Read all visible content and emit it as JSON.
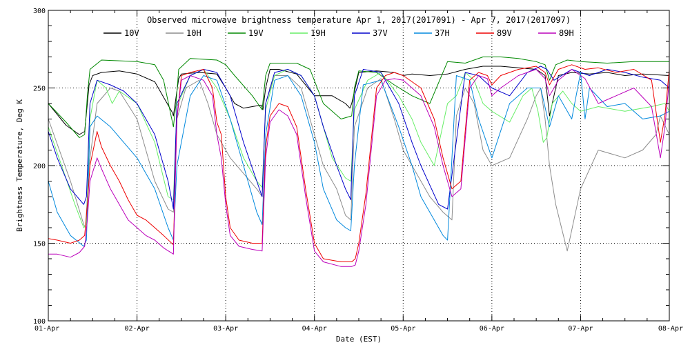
{
  "chart_data": {
    "type": "line",
    "title": "Observed microwave brightness temperature Apr  1, 2017(2017091) - Apr  7, 2017(2017097)",
    "xlabel": "Date (EST)",
    "ylabel": "Brightness Temperature, Deg K",
    "xlim": [
      0,
      7
    ],
    "ylim": [
      100,
      300
    ],
    "grid": true,
    "legend_position": "top",
    "xticks": [
      {
        "value": 0,
        "label": "01-Apr"
      },
      {
        "value": 1,
        "label": "02-Apr"
      },
      {
        "value": 2,
        "label": "03-Apr"
      },
      {
        "value": 3,
        "label": "04-Apr"
      },
      {
        "value": 4,
        "label": "05-Apr"
      },
      {
        "value": 5,
        "label": "06-Apr"
      },
      {
        "value": 6,
        "label": "07-Apr"
      },
      {
        "value": 7,
        "label": "08-Apr"
      }
    ],
    "yticks": [
      {
        "value": 100,
        "label": "100"
      },
      {
        "value": 150,
        "label": "150"
      },
      {
        "value": 200,
        "label": "200"
      },
      {
        "value": 250,
        "label": "250"
      },
      {
        "value": 300,
        "label": "300"
      }
    ],
    "series": [
      {
        "name": "10V",
        "color": "#000000",
        "x": [
          0,
          0.2,
          0.35,
          0.41,
          0.44,
          0.46,
          0.5,
          0.6,
          0.8,
          1.0,
          1.2,
          1.4,
          1.41,
          1.44,
          1.47,
          1.5,
          1.7,
          1.9,
          2.0,
          2.1,
          2.2,
          2.3,
          2.4,
          2.42,
          2.45,
          2.5,
          2.6,
          2.8,
          3.0,
          3.2,
          3.35,
          3.4,
          3.42,
          3.5,
          3.7,
          3.9,
          4.0,
          4.1,
          4.3,
          4.5,
          4.7,
          4.9,
          5.1,
          5.3,
          5.5,
          5.6,
          5.65,
          5.75,
          5.9,
          6.1,
          6.3,
          6.5,
          6.7,
          7.0
        ],
        "y": [
          240,
          226,
          220,
          222,
          240,
          252,
          258,
          260,
          261,
          259,
          254,
          234,
          232,
          244,
          256,
          259,
          260,
          259,
          250,
          240,
          237,
          238,
          239,
          236,
          250,
          262,
          262,
          259,
          245,
          245,
          240,
          237,
          240,
          260,
          261,
          260,
          258,
          259,
          258,
          259,
          262,
          264,
          264,
          263,
          262,
          258,
          232,
          258,
          260,
          259,
          260,
          258,
          259,
          258
        ]
      },
      {
        "name": "10H",
        "color": "#8c8c8c",
        "x": [
          0,
          0.25,
          0.4,
          0.42,
          0.46,
          0.55,
          0.7,
          0.8,
          1.0,
          1.2,
          1.35,
          1.41,
          1.45,
          1.55,
          1.7,
          1.8,
          1.9,
          2.05,
          2.2,
          2.35,
          2.41,
          2.45,
          2.55,
          2.7,
          2.85,
          3.0,
          3.1,
          3.25,
          3.35,
          3.41,
          3.45,
          3.6,
          3.75,
          3.9,
          4.0,
          4.15,
          4.3,
          4.45,
          4.55,
          4.6,
          4.7,
          4.8,
          4.9,
          5.0,
          5.2,
          5.4,
          5.5,
          5.55,
          5.6,
          5.65,
          5.72,
          5.85,
          6.0,
          6.2,
          6.5,
          6.7,
          6.85,
          6.9,
          7.0
        ],
        "y": [
          230,
          190,
          162,
          160,
          200,
          240,
          250,
          248,
          230,
          190,
          172,
          170,
          230,
          250,
          255,
          240,
          220,
          205,
          195,
          185,
          180,
          240,
          258,
          258,
          250,
          220,
          200,
          185,
          168,
          165,
          225,
          250,
          256,
          230,
          210,
          195,
          180,
          170,
          165,
          232,
          250,
          240,
          210,
          200,
          205,
          230,
          245,
          250,
          230,
          200,
          175,
          145,
          185,
          210,
          205,
          210,
          220,
          232,
          220
        ]
      },
      {
        "name": "19V",
        "color": "#008800",
        "x": [
          0,
          0.2,
          0.35,
          0.41,
          0.44,
          0.47,
          0.6,
          1.0,
          1.2,
          1.3,
          1.41,
          1.44,
          1.47,
          1.6,
          1.9,
          2.0,
          2.1,
          2.3,
          2.41,
          2.45,
          2.5,
          2.8,
          2.95,
          3.1,
          3.3,
          3.42,
          3.45,
          3.5,
          3.7,
          3.9,
          4.1,
          4.3,
          4.5,
          4.7,
          4.9,
          5.1,
          5.3,
          5.5,
          5.6,
          5.65,
          5.72,
          5.85,
          6.0,
          6.3,
          6.6,
          7.0
        ],
        "y": [
          240,
          228,
          218,
          220,
          245,
          262,
          268,
          267,
          265,
          255,
          225,
          240,
          262,
          269,
          268,
          265,
          258,
          245,
          236,
          258,
          266,
          266,
          262,
          240,
          230,
          232,
          250,
          261,
          260,
          252,
          245,
          240,
          267,
          266,
          270,
          270,
          269,
          267,
          265,
          255,
          265,
          268,
          267,
          266,
          267,
          267
        ]
      },
      {
        "name": "19H",
        "color": "#66ee66",
        "x": [
          0,
          0.15,
          0.3,
          0.4,
          0.43,
          0.47,
          0.55,
          0.65,
          0.72,
          0.8,
          1.0,
          1.2,
          1.35,
          1.41,
          1.45,
          1.6,
          1.75,
          1.9,
          2.05,
          2.2,
          2.35,
          2.41,
          2.45,
          2.55,
          2.7,
          2.85,
          3.0,
          3.1,
          3.2,
          3.35,
          3.41,
          3.45,
          3.6,
          3.75,
          3.95,
          4.1,
          4.2,
          4.35,
          4.5,
          4.6,
          4.7,
          4.8,
          4.9,
          5.0,
          5.2,
          5.35,
          5.45,
          5.52,
          5.58,
          5.62,
          5.68,
          5.8,
          5.9,
          6.0,
          6.2,
          6.5,
          6.8,
          6.95,
          7.0
        ],
        "y": [
          225,
          200,
          175,
          160,
          162,
          230,
          255,
          250,
          240,
          248,
          240,
          215,
          180,
          178,
          238,
          258,
          262,
          250,
          230,
          205,
          190,
          186,
          236,
          258,
          262,
          258,
          245,
          225,
          205,
          192,
          190,
          236,
          255,
          260,
          245,
          230,
          215,
          200,
          240,
          245,
          260,
          255,
          240,
          235,
          228,
          245,
          250,
          235,
          215,
          218,
          240,
          248,
          240,
          235,
          238,
          235,
          238,
          240,
          235
        ]
      },
      {
        "name": "37V",
        "color": "#0000cc",
        "x": [
          0,
          0.1,
          0.25,
          0.4,
          0.43,
          0.47,
          0.55,
          0.7,
          0.85,
          1.0,
          1.2,
          1.35,
          1.41,
          1.45,
          1.6,
          1.75,
          1.9,
          2.05,
          2.2,
          2.35,
          2.41,
          2.45,
          2.55,
          2.7,
          2.85,
          3.0,
          3.1,
          3.25,
          3.35,
          3.41,
          3.45,
          3.55,
          3.75,
          3.95,
          4.1,
          4.2,
          4.4,
          4.5,
          4.7,
          4.85,
          5.0,
          5.2,
          5.4,
          5.55,
          5.62,
          5.7,
          5.9,
          6.1,
          6.3,
          6.5,
          6.7,
          6.9,
          7.0
        ],
        "y": [
          222,
          205,
          185,
          175,
          180,
          240,
          255,
          252,
          248,
          240,
          220,
          190,
          172,
          240,
          258,
          262,
          260,
          245,
          215,
          190,
          180,
          240,
          260,
          262,
          258,
          245,
          225,
          200,
          185,
          178,
          245,
          262,
          260,
          240,
          215,
          200,
          175,
          172,
          260,
          258,
          250,
          245,
          260,
          264,
          262,
          255,
          262,
          258,
          262,
          260,
          257,
          255,
          250
        ]
      },
      {
        "name": "37H",
        "color": "#0088dd",
        "x": [
          0,
          0.1,
          0.25,
          0.4,
          0.43,
          0.47,
          0.55,
          0.7,
          0.85,
          1.0,
          1.2,
          1.35,
          1.41,
          1.45,
          1.6,
          1.75,
          1.9,
          2.05,
          2.2,
          2.35,
          2.41,
          2.45,
          2.55,
          2.7,
          2.85,
          3.0,
          3.1,
          3.25,
          3.35,
          3.41,
          3.45,
          3.55,
          3.75,
          3.95,
          4.1,
          4.2,
          4.35,
          4.45,
          4.5,
          4.6,
          4.75,
          4.85,
          5.0,
          5.2,
          5.4,
          5.55,
          5.65,
          5.75,
          5.9,
          6.0,
          6.05,
          6.1,
          6.3,
          6.5,
          6.7,
          6.9,
          7.0
        ],
        "y": [
          190,
          170,
          155,
          148,
          152,
          225,
          232,
          225,
          215,
          205,
          185,
          160,
          152,
          200,
          245,
          258,
          255,
          230,
          200,
          170,
          162,
          220,
          255,
          258,
          245,
          215,
          185,
          165,
          160,
          158,
          200,
          252,
          255,
          225,
          200,
          180,
          165,
          155,
          152,
          258,
          255,
          230,
          205,
          240,
          250,
          250,
          225,
          245,
          230,
          260,
          230,
          250,
          238,
          240,
          230,
          232,
          235
        ]
      },
      {
        "name": "89V",
        "color": "#ee0000",
        "x": [
          0,
          0.1,
          0.25,
          0.35,
          0.41,
          0.44,
          0.47,
          0.55,
          0.6,
          0.7,
          0.8,
          0.9,
          1.0,
          1.1,
          1.2,
          1.3,
          1.41,
          1.45,
          1.5,
          1.6,
          1.75,
          1.85,
          1.9,
          1.95,
          2.0,
          2.05,
          2.15,
          2.3,
          2.41,
          2.45,
          2.5,
          2.6,
          2.7,
          2.8,
          2.9,
          3.0,
          3.1,
          3.3,
          3.42,
          3.46,
          3.5,
          3.58,
          3.7,
          3.8,
          3.9,
          4.0,
          4.2,
          4.35,
          4.45,
          4.55,
          4.65,
          4.75,
          4.85,
          4.95,
          5.0,
          5.1,
          5.3,
          5.5,
          5.6,
          5.65,
          5.75,
          5.9,
          6.05,
          6.2,
          6.4,
          6.6,
          6.8,
          6.9,
          6.95,
          7.0
        ],
        "y": [
          153,
          152,
          150,
          152,
          155,
          175,
          200,
          222,
          212,
          200,
          190,
          178,
          168,
          165,
          160,
          155,
          149,
          230,
          258,
          260,
          262,
          250,
          228,
          220,
          180,
          160,
          152,
          150,
          150,
          212,
          232,
          240,
          238,
          225,
          185,
          150,
          140,
          138,
          138,
          140,
          150,
          182,
          250,
          258,
          260,
          258,
          250,
          230,
          205,
          185,
          190,
          255,
          260,
          258,
          252,
          258,
          262,
          264,
          260,
          252,
          262,
          265,
          262,
          263,
          260,
          262,
          255,
          215,
          232,
          262
        ]
      },
      {
        "name": "89H",
        "color": "#bb00bb",
        "x": [
          0,
          0.1,
          0.25,
          0.35,
          0.41,
          0.44,
          0.47,
          0.55,
          0.6,
          0.7,
          0.8,
          0.9,
          1.0,
          1.1,
          1.2,
          1.3,
          1.41,
          1.45,
          1.5,
          1.6,
          1.75,
          1.85,
          1.9,
          1.95,
          2.0,
          2.05,
          2.15,
          2.3,
          2.41,
          2.45,
          2.5,
          2.6,
          2.7,
          2.8,
          2.9,
          3.0,
          3.1,
          3.3,
          3.42,
          3.46,
          3.5,
          3.58,
          3.7,
          3.8,
          3.9,
          4.0,
          4.2,
          4.35,
          4.45,
          4.55,
          4.65,
          4.75,
          4.85,
          4.95,
          5.0,
          5.1,
          5.3,
          5.5,
          5.6,
          5.65,
          5.75,
          5.9,
          6.05,
          6.2,
          6.4,
          6.6,
          6.8,
          6.9,
          6.95,
          7.0
        ],
        "y": [
          143,
          143,
          141,
          144,
          148,
          165,
          190,
          205,
          198,
          185,
          175,
          165,
          160,
          155,
          152,
          147,
          143,
          230,
          255,
          258,
          255,
          245,
          220,
          205,
          175,
          155,
          148,
          146,
          145,
          205,
          228,
          236,
          232,
          220,
          180,
          145,
          138,
          135,
          135,
          136,
          145,
          175,
          245,
          255,
          256,
          255,
          245,
          225,
          200,
          180,
          185,
          250,
          258,
          256,
          245,
          250,
          258,
          262,
          256,
          245,
          255,
          262,
          256,
          240,
          245,
          250,
          238,
          205,
          225,
          255
        ]
      }
    ]
  }
}
